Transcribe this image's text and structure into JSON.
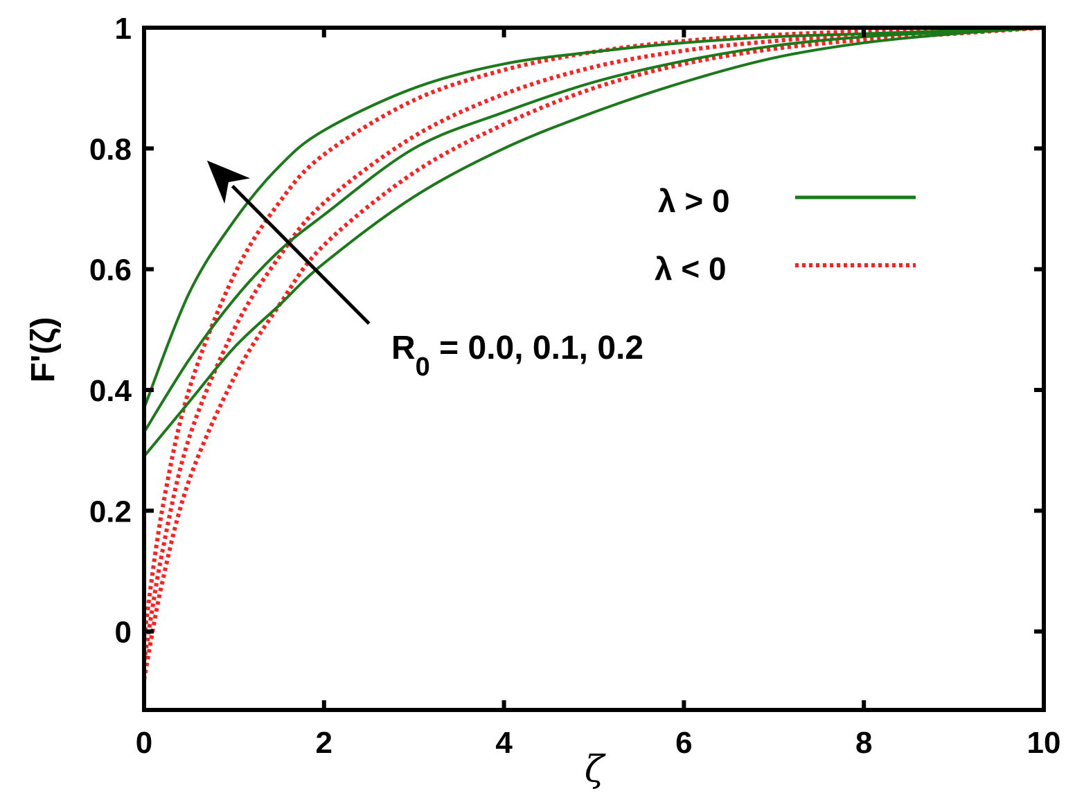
{
  "chart_data": {
    "type": "line",
    "xlabel": "ζ",
    "ylabel": "F'(ζ)",
    "xlim": [
      0,
      10
    ],
    "ylim": [
      -0.13,
      1.0
    ],
    "xticks": [
      0,
      2,
      4,
      6,
      8,
      10
    ],
    "yticks": [
      0,
      0.2,
      0.4,
      0.6,
      0.8,
      1
    ],
    "xtick_labels": [
      "0",
      "2",
      "4",
      "6",
      "8",
      "10"
    ],
    "ytick_labels": [
      "0",
      "0.2",
      "0.4",
      "0.6",
      "0.8",
      "1"
    ],
    "grid": false,
    "legend": {
      "placement": "right",
      "entries": [
        {
          "label": "λ > 0",
          "color": "#1a7a1a",
          "style": "solid"
        },
        {
          "label": "λ < 0",
          "color": "#ff2020",
          "style": "dotted"
        }
      ]
    },
    "annotation": {
      "text_main": "R",
      "text_sub": "0",
      "text_rest": " = 0.0, 0.1, 0.2",
      "arrow_from": [
        2.5,
        0.51
      ],
      "arrow_to": [
        0.7,
        0.78
      ]
    },
    "series": [
      {
        "group": "λ > 0",
        "color": "#1a7a1a",
        "style": "solid",
        "x": [
          0,
          0.5,
          1,
          1.5,
          2,
          3,
          4,
          5,
          6,
          7,
          8,
          9,
          10
        ],
        "y": [
          0.37,
          0.56,
          0.68,
          0.77,
          0.83,
          0.9,
          0.94,
          0.96,
          0.975,
          0.985,
          0.99,
          0.995,
          1.0
        ]
      },
      {
        "group": "λ > 0",
        "color": "#1a7a1a",
        "style": "solid",
        "x": [
          0,
          0.5,
          1,
          1.5,
          2,
          3,
          4,
          5,
          6,
          7,
          8,
          9,
          10
        ],
        "y": [
          0.33,
          0.45,
          0.55,
          0.63,
          0.69,
          0.8,
          0.86,
          0.91,
          0.945,
          0.97,
          0.985,
          0.993,
          1.0
        ]
      },
      {
        "group": "λ > 0",
        "color": "#1a7a1a",
        "style": "solid",
        "x": [
          0,
          0.5,
          1,
          1.5,
          2,
          3,
          4,
          5,
          6,
          7,
          8,
          9,
          10
        ],
        "y": [
          0.29,
          0.38,
          0.47,
          0.54,
          0.61,
          0.72,
          0.8,
          0.86,
          0.91,
          0.95,
          0.975,
          0.99,
          1.0
        ]
      },
      {
        "group": "λ < 0",
        "color": "#ff2020",
        "style": "dotted",
        "x": [
          0,
          0.2,
          0.5,
          1,
          1.5,
          2,
          3,
          4,
          5,
          6,
          7,
          8,
          9,
          10
        ],
        "y": [
          -0.01,
          0.2,
          0.4,
          0.59,
          0.71,
          0.79,
          0.88,
          0.93,
          0.96,
          0.978,
          0.988,
          0.994,
          0.997,
          1.0
        ]
      },
      {
        "group": "λ < 0",
        "color": "#ff2020",
        "style": "dotted",
        "x": [
          0,
          0.2,
          0.5,
          1,
          1.5,
          2,
          3,
          4,
          5,
          6,
          7,
          8,
          9,
          10
        ],
        "y": [
          -0.05,
          0.13,
          0.32,
          0.5,
          0.62,
          0.71,
          0.82,
          0.89,
          0.935,
          0.962,
          0.978,
          0.988,
          0.994,
          1.0
        ]
      },
      {
        "group": "λ < 0",
        "color": "#ff2020",
        "style": "dotted",
        "x": [
          0,
          0.2,
          0.5,
          1,
          1.5,
          2,
          3,
          4,
          5,
          6,
          7,
          8,
          9,
          10
        ],
        "y": [
          -0.08,
          0.08,
          0.25,
          0.42,
          0.54,
          0.64,
          0.76,
          0.84,
          0.9,
          0.94,
          0.965,
          0.98,
          0.99,
          1.0
        ]
      }
    ]
  }
}
